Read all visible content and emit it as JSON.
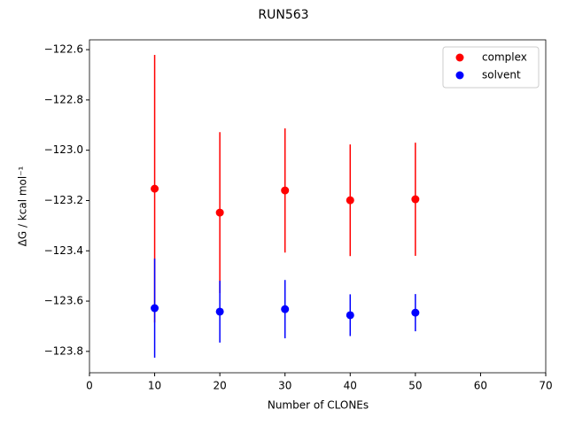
{
  "chart_data": {
    "type": "errorbar",
    "title": "RUN563",
    "xlabel": "Number of CLONEs",
    "ylabel": "ΔG / kcal mol⁻¹",
    "x": [
      10,
      20,
      30,
      40,
      50
    ],
    "series": [
      {
        "name": "complex",
        "color": "#ff0000",
        "values": [
          -123.153,
          -123.248,
          -123.16,
          -123.199,
          -123.195
        ],
        "errors": [
          0.532,
          0.32,
          0.247,
          0.222,
          0.225
        ]
      },
      {
        "name": "solvent",
        "color": "#0000ff",
        "values": [
          -123.628,
          -123.642,
          -123.632,
          -123.656,
          -123.646
        ],
        "errors": [
          0.197,
          0.123,
          0.116,
          0.083,
          0.074
        ]
      }
    ],
    "xlim": [
      0,
      70
    ],
    "xticks": [
      0,
      10,
      20,
      30,
      40,
      50,
      60,
      70
    ],
    "ylim": [
      -123.885,
      -122.561
    ],
    "yticks": [
      {
        "value": -123.8,
        "label": "−123.8"
      },
      {
        "value": -123.6,
        "label": "−123.6"
      },
      {
        "value": -123.4,
        "label": "−123.4"
      },
      {
        "value": -123.2,
        "label": "−123.2"
      },
      {
        "value": -123.0,
        "label": "−123.0"
      },
      {
        "value": -122.8,
        "label": "−122.8"
      },
      {
        "value": -122.6,
        "label": "−122.6"
      }
    ],
    "legend": "upper right"
  }
}
